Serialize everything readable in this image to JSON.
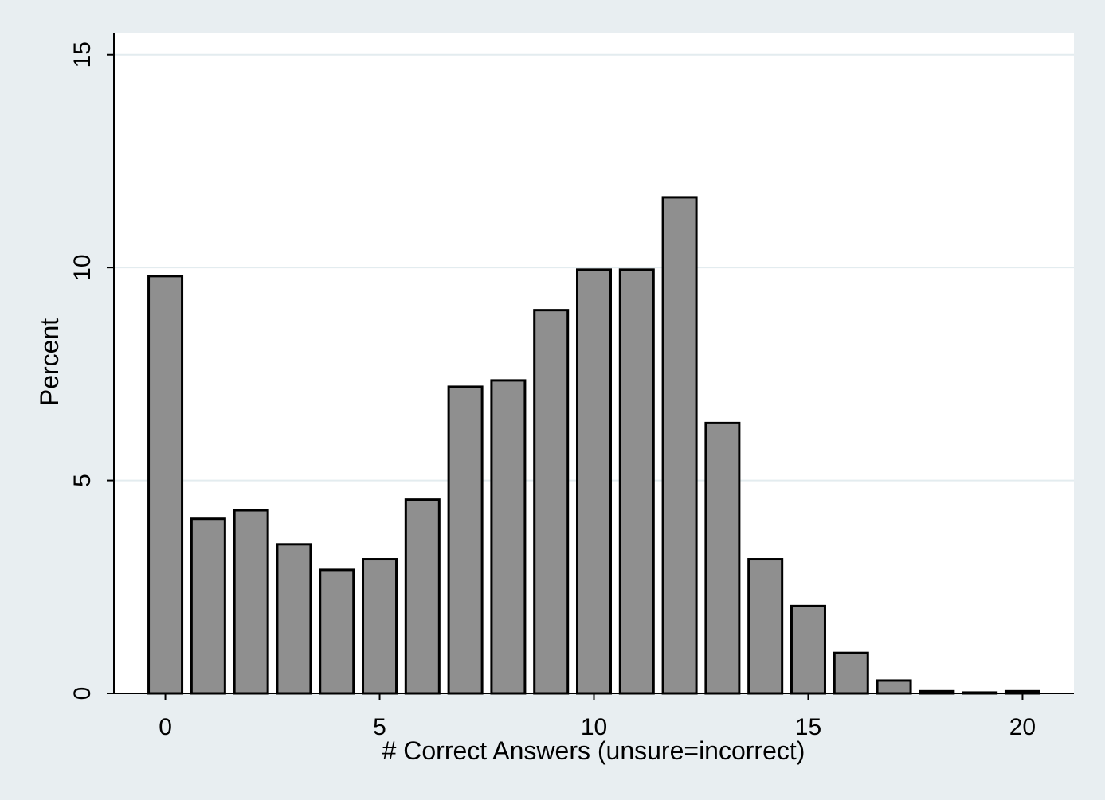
{
  "colors": {
    "outer_background": "#e8eef1",
    "plot_background": "#ffffff",
    "bar_fill": "#8f8f8f",
    "bar_stroke": "#000000",
    "gridline": "#e3ecef",
    "axis": "#000000"
  },
  "chart_data": {
    "type": "bar",
    "title": "",
    "xlabel": "# Correct Answers (unsure=incorrect)",
    "ylabel": "Percent",
    "categories": [
      0,
      1,
      2,
      3,
      4,
      5,
      6,
      7,
      8,
      9,
      10,
      11,
      12,
      13,
      14,
      15,
      16,
      17,
      18,
      19,
      20
    ],
    "values": [
      9.8,
      4.1,
      4.3,
      3.5,
      2.9,
      3.15,
      4.55,
      7.2,
      7.35,
      9.0,
      9.95,
      9.95,
      11.65,
      6.35,
      3.15,
      2.05,
      0.95,
      0.3,
      0.05,
      0.02,
      0.05
    ],
    "xlim": [
      -1.2,
      21.2
    ],
    "ylim": [
      0,
      15.5
    ],
    "x_ticks": [
      0,
      5,
      10,
      15,
      20
    ],
    "x_tick_labels": [
      "0",
      "5",
      "10",
      "15",
      "20"
    ],
    "y_ticks": [
      0,
      5,
      10,
      15
    ],
    "y_tick_labels": [
      "0",
      "5",
      "10",
      "15"
    ],
    "grid": true,
    "legend": "none"
  }
}
